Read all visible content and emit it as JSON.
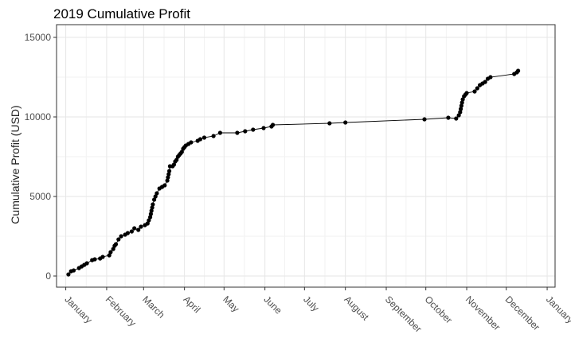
{
  "chart_data": {
    "type": "line",
    "title": "2019 Cumulative Profit",
    "xlabel": "",
    "ylabel": "Cumulative Profit (USD)",
    "ylim": [
      -700,
      15800
    ],
    "y_ticks": [
      0,
      5000,
      10000,
      15000
    ],
    "xlim": [
      -7,
      371
    ],
    "x_ticks": [
      {
        "label": "January",
        "day": 0
      },
      {
        "label": "February",
        "day": 31
      },
      {
        "label": "March",
        "day": 59
      },
      {
        "label": "April",
        "day": 90
      },
      {
        "label": "May",
        "day": 120
      },
      {
        "label": "June",
        "day": 151
      },
      {
        "label": "July",
        "day": 181
      },
      {
        "label": "August",
        "day": 212
      },
      {
        "label": "September",
        "day": 243
      },
      {
        "label": "October",
        "day": 273
      },
      {
        "label": "November",
        "day": 304
      },
      {
        "label": "December",
        "day": 334
      },
      {
        "label": "January",
        "day": 365
      }
    ],
    "grid": true,
    "legend": "none",
    "series": [
      {
        "points": [
          [
            2,
            100
          ],
          [
            4,
            300
          ],
          [
            6,
            350
          ],
          [
            10,
            500
          ],
          [
            12,
            600
          ],
          [
            14,
            700
          ],
          [
            16,
            800
          ],
          [
            20,
            1000
          ],
          [
            22,
            1050
          ],
          [
            26,
            1100
          ],
          [
            28,
            1200
          ],
          [
            33,
            1300
          ],
          [
            34,
            1500
          ],
          [
            36,
            1700
          ],
          [
            37,
            1900
          ],
          [
            38,
            2000
          ],
          [
            40,
            2300
          ],
          [
            42,
            2500
          ],
          [
            45,
            2600
          ],
          [
            47,
            2700
          ],
          [
            50,
            2800
          ],
          [
            52,
            3000
          ],
          [
            55,
            2900
          ],
          [
            57,
            3100
          ],
          [
            60,
            3200
          ],
          [
            62,
            3300
          ],
          [
            63,
            3500
          ],
          [
            64,
            3700
          ],
          [
            64.5,
            3900
          ],
          [
            65,
            4100
          ],
          [
            65.5,
            4300
          ],
          [
            66,
            4500
          ],
          [
            67,
            4800
          ],
          [
            68,
            5000
          ],
          [
            69,
            5200
          ],
          [
            71,
            5500
          ],
          [
            73,
            5600
          ],
          [
            75,
            5700
          ],
          [
            77,
            6000
          ],
          [
            77.5,
            6200
          ],
          [
            78,
            6400
          ],
          [
            78.5,
            6600
          ],
          [
            79,
            6900
          ],
          [
            81,
            6900
          ],
          [
            82,
            7000
          ],
          [
            83,
            7200
          ],
          [
            84,
            7300
          ],
          [
            85,
            7500
          ],
          [
            86,
            7600
          ],
          [
            87,
            7700
          ],
          [
            88,
            7800
          ],
          [
            89,
            8000
          ],
          [
            90,
            8100
          ],
          [
            91,
            8200
          ],
          [
            93,
            8300
          ],
          [
            95,
            8400
          ],
          [
            100,
            8500
          ],
          [
            102,
            8600
          ],
          [
            105,
            8700
          ],
          [
            112,
            8800
          ],
          [
            117,
            9000
          ],
          [
            130,
            9000
          ],
          [
            136,
            9100
          ],
          [
            142,
            9200
          ],
          [
            150,
            9300
          ],
          [
            156,
            9400
          ],
          [
            157,
            9500
          ],
          [
            200,
            9600
          ],
          [
            212,
            9650
          ],
          [
            272,
            9850
          ],
          [
            290,
            9950
          ],
          [
            296,
            9900
          ],
          [
            298,
            10100
          ],
          [
            299,
            10300
          ],
          [
            299.5,
            10500
          ],
          [
            300,
            10700
          ],
          [
            300.5,
            10900
          ],
          [
            301,
            11100
          ],
          [
            302,
            11300
          ],
          [
            303,
            11400
          ],
          [
            304,
            11500
          ],
          [
            310,
            11600
          ],
          [
            312,
            11800
          ],
          [
            314,
            12000
          ],
          [
            316,
            12100
          ],
          [
            318,
            12200
          ],
          [
            320,
            12400
          ],
          [
            322,
            12500
          ],
          [
            340,
            12700
          ],
          [
            342,
            12800
          ],
          [
            343,
            12900
          ]
        ]
      }
    ]
  }
}
